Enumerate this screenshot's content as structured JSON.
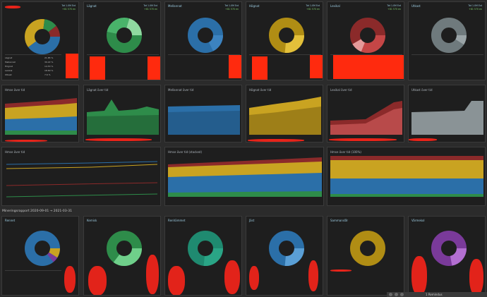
{
  "colors": {
    "blue": "#2b6fa8",
    "green": "#2e8c4a",
    "yellow": "#c9a321",
    "darkred": "#8b2a2a",
    "gray": "#8a9396",
    "teal": "#1f8a70",
    "purple": "#7a3a9a"
  },
  "top_cards": [
    {
      "title": "",
      "stat1": "Tot 1.0M Ext",
      "stat2": "+81 570 en"
    },
    {
      "title": "Lägnat",
      "stat1": "Tot 1.0M Ext",
      "stat2": "+81 570 en"
    },
    {
      "title": "Mellannat",
      "stat1": "Tot 1.0M Ext",
      "stat2": "+81 570 en"
    },
    {
      "title": "Högnat",
      "stat1": "Tot 1.0M Ext",
      "stat2": "+81 570 en"
    },
    {
      "title": "Lexikal",
      "stat1": "Tot 1.0M Ext",
      "stat2": "+81 570 en"
    },
    {
      "title": "Utkast",
      "stat1": "Tot 1.0M Ext",
      "stat2": "+81 570 en"
    }
  ],
  "legend_rows": [
    "Lägnat",
    "Mellannat",
    "Högnat",
    "Lexikal",
    "Utkast"
  ],
  "legend_vals": [
    "21.85 %",
    "30.22 %",
    "14.53 %",
    "18.60 %",
    "7.6 %"
  ],
  "mid_charts": [
    {
      "title": "Hmse över tid"
    },
    {
      "title": "Lägnat över tid"
    },
    {
      "title": "Mellannat över tid"
    },
    {
      "title": "Högnat över tid"
    },
    {
      "title": "Lexikal över tid"
    },
    {
      "title": "Utkast över tid"
    }
  ],
  "wide_charts": [
    {
      "title": "Hmse över tid"
    },
    {
      "title": "Hmse över tid (stacked)"
    },
    {
      "title": "Hmse över tid (100%)"
    }
  ],
  "section_label": "Mineringsrapport 2020-09-01 → 2021-03-31",
  "bottom_cards": [
    {
      "title": "Rennet"
    },
    {
      "title": "Kemisk"
    },
    {
      "title": "Renhämmet"
    },
    {
      "title": "Jäst"
    },
    {
      "title": "Sammanslår"
    },
    {
      "title": "Värmekol"
    }
  ],
  "status_bar": {
    "label": "1 Remindus"
  }
}
